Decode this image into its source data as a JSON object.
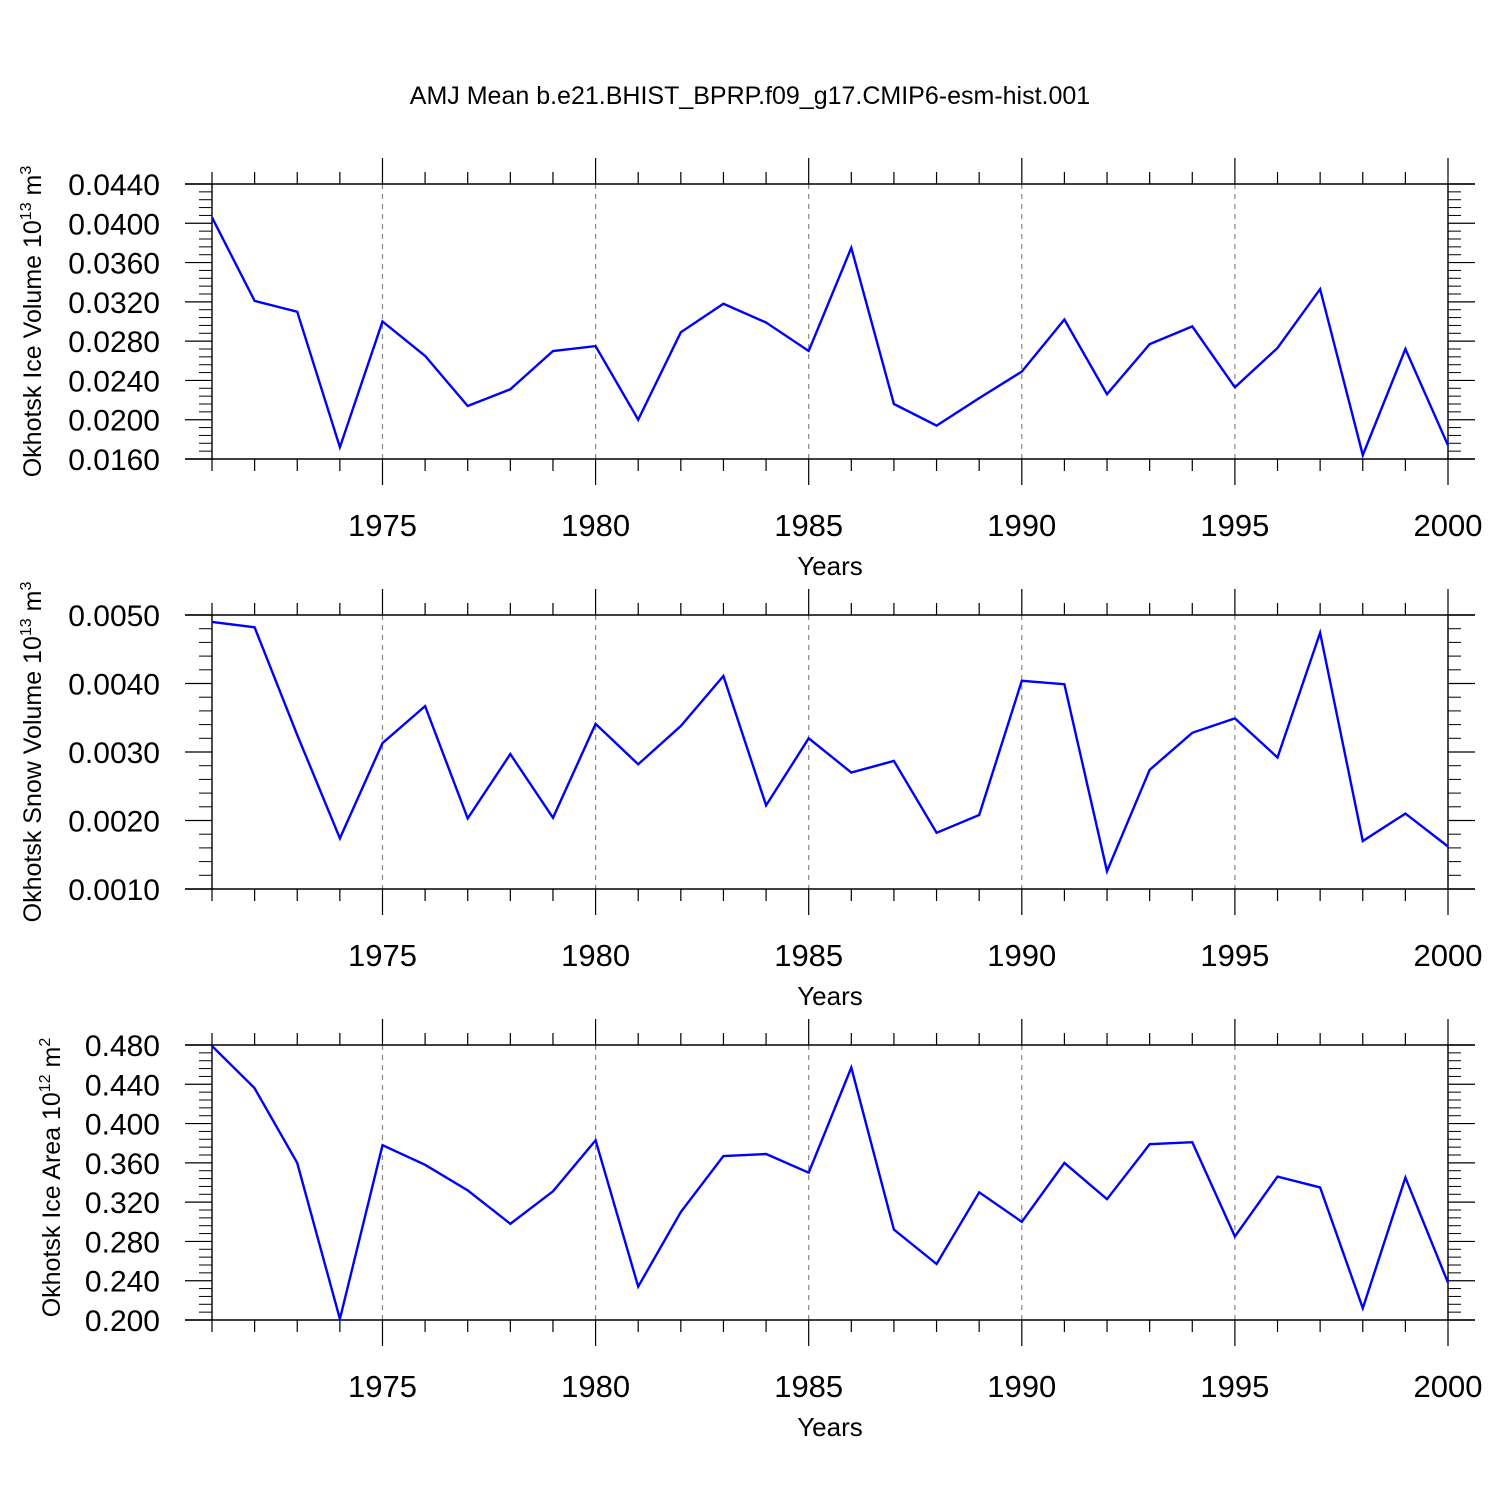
{
  "title": "AMJ Mean b.e21.BHIST_BPRP.f09_g17.CMIP6-esm-hist.001",
  "chart_data": [
    {
      "type": "line",
      "title": "",
      "xlabel": "Years",
      "ylabel": "Okhotsk Ice Volume 10",
      "ylabel_exp": "13",
      "ylabel_unit": " m",
      "ylabel_unit_exp": "3",
      "xlim": [
        1971,
        2000
      ],
      "ylim": [
        0.016,
        0.044
      ],
      "x_ticks": [
        "1975",
        "1980",
        "1985",
        "1990",
        "1995",
        "2000"
      ],
      "y_ticks": [
        "0.0160",
        "0.0200",
        "0.0240",
        "0.0280",
        "0.0320",
        "0.0360",
        "0.0400",
        "0.0440"
      ],
      "grid": "vertical dashed at major x ticks",
      "color": "#0000ff",
      "series": [
        {
          "x": [
            1971,
            1972,
            1973,
            1974,
            1975,
            1976,
            1977,
            1978,
            1979,
            1980,
            1981,
            1982,
            1983,
            1984,
            1985,
            1986,
            1987,
            1988,
            1989,
            1990,
            1991,
            1992,
            1993,
            1994,
            1995,
            1996,
            1997,
            1998,
            1999,
            2000
          ],
          "values": [
            0.0406,
            0.0321,
            0.031,
            0.0172,
            0.03,
            0.0265,
            0.0214,
            0.0231,
            0.027,
            0.0275,
            0.02,
            0.0289,
            0.0318,
            0.0299,
            0.027,
            0.0375,
            0.0216,
            0.0194,
            0.0222,
            0.0249,
            0.0302,
            0.0226,
            0.0277,
            0.0295,
            0.0233,
            0.0273,
            0.0333,
            0.0164,
            0.0272,
            0.0174
          ]
        }
      ]
    },
    {
      "type": "line",
      "title": "",
      "xlabel": "Years",
      "ylabel": "Okhotsk Snow Volume 10",
      "ylabel_exp": "13",
      "ylabel_unit": " m",
      "ylabel_unit_exp": "3",
      "xlim": [
        1971,
        2000
      ],
      "ylim": [
        0.001,
        0.005
      ],
      "x_ticks": [
        "1975",
        "1980",
        "1985",
        "1990",
        "1995",
        "2000"
      ],
      "y_ticks": [
        "0.0010",
        "0.0020",
        "0.0030",
        "0.0040",
        "0.0050"
      ],
      "grid": "vertical dashed at major x ticks",
      "color": "#0000ff",
      "series": [
        {
          "x": [
            1971,
            1972,
            1973,
            1974,
            1975,
            1976,
            1977,
            1978,
            1979,
            1980,
            1981,
            1982,
            1983,
            1984,
            1985,
            1986,
            1987,
            1988,
            1989,
            1990,
            1991,
            1992,
            1993,
            1994,
            1995,
            1996,
            1997,
            1998,
            1999,
            2000
          ],
          "values": [
            0.0049,
            0.00482,
            0.00325,
            0.00174,
            0.00313,
            0.00367,
            0.00203,
            0.00297,
            0.00204,
            0.00341,
            0.00282,
            0.00338,
            0.00411,
            0.00222,
            0.0032,
            0.0027,
            0.00287,
            0.00182,
            0.00208,
            0.00404,
            0.00399,
            0.00126,
            0.00274,
            0.00328,
            0.00349,
            0.00292,
            0.00474,
            0.0017,
            0.0021,
            0.00162
          ]
        }
      ]
    },
    {
      "type": "line",
      "title": "",
      "xlabel": "Years",
      "ylabel": "Okhotsk Ice Area 10",
      "ylabel_exp": "12",
      "ylabel_unit": " m",
      "ylabel_unit_exp": "2",
      "xlim": [
        1971,
        2000
      ],
      "ylim": [
        0.2,
        0.48
      ],
      "x_ticks": [
        "1975",
        "1980",
        "1985",
        "1990",
        "1995",
        "2000"
      ],
      "y_ticks": [
        "0.200",
        "0.240",
        "0.280",
        "0.320",
        "0.360",
        "0.400",
        "0.440",
        "0.480"
      ],
      "grid": "vertical dashed at major x ticks",
      "color": "#0000ff",
      "series": [
        {
          "x": [
            1971,
            1972,
            1973,
            1974,
            1975,
            1976,
            1977,
            1978,
            1979,
            1980,
            1981,
            1982,
            1983,
            1984,
            1985,
            1986,
            1987,
            1988,
            1989,
            1990,
            1991,
            1992,
            1993,
            1994,
            1995,
            1996,
            1997,
            1998,
            1999,
            2000
          ],
          "values": [
            0.479,
            0.436,
            0.36,
            0.201,
            0.378,
            0.358,
            0.332,
            0.298,
            0.331,
            0.383,
            0.234,
            0.31,
            0.367,
            0.369,
            0.35,
            0.457,
            0.292,
            0.257,
            0.33,
            0.3,
            0.36,
            0.323,
            0.379,
            0.381,
            0.285,
            0.346,
            0.335,
            0.212,
            0.345,
            0.238
          ]
        }
      ]
    }
  ]
}
